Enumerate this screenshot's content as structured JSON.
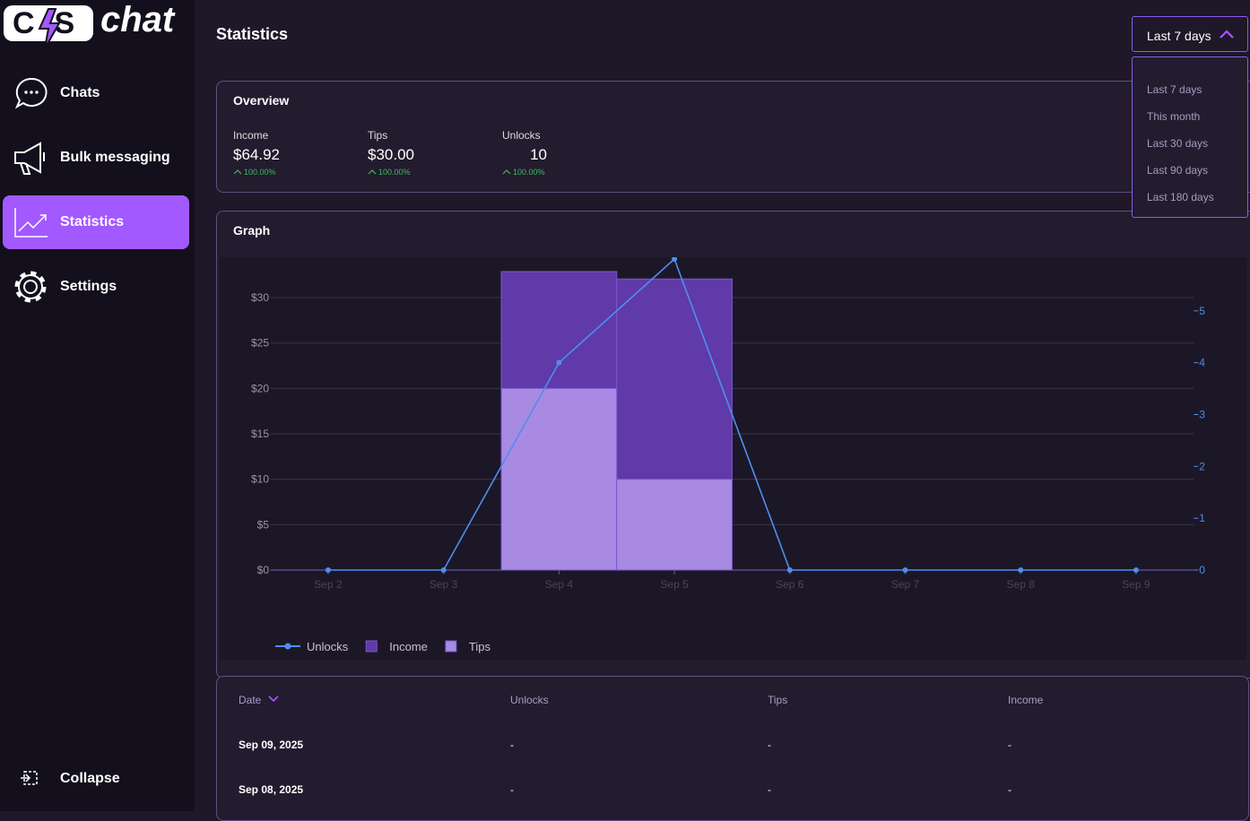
{
  "logo": {
    "mark": "CS",
    "name": "chat"
  },
  "nav": [
    "Chats",
    "Bulk messaging",
    "Statistics",
    "Settings"
  ],
  "collapse": "Collapse",
  "header": {
    "title": "Statistics",
    "range": "Last 7 days"
  },
  "dropdown": [
    "Last 7 days",
    "This month",
    "Last 30 days",
    "Last 90 days",
    "Last 180 days"
  ],
  "overview": {
    "title": "Overview",
    "items": [
      {
        "label": "Income",
        "value": "$64.92",
        "change": "100.00%"
      },
      {
        "label": "Tips",
        "value": "$30.00",
        "change": "100.00%"
      },
      {
        "label": "Unlocks",
        "value": "10",
        "change": "100.00%"
      }
    ]
  },
  "chart_data": {
    "type": "bar",
    "title": "Graph",
    "categories": [
      "Sep 2",
      "Sep 3",
      "Sep 4",
      "Sep 5",
      "Sep 6",
      "Sep 7",
      "Sep 8",
      "Sep 9"
    ],
    "series": [
      {
        "name": "Unlocks",
        "color": "#4f8ef0",
        "type": "line",
        "axis": "y2",
        "values": [
          0,
          0,
          4,
          6,
          0,
          0,
          0,
          0
        ]
      },
      {
        "name": "Income",
        "color": "#5f3aa8",
        "type": "bar",
        "values": [
          0,
          0,
          32.87,
          32.05,
          0,
          0,
          0,
          0
        ]
      },
      {
        "name": "Tips",
        "color": "#a98ae2",
        "type": "bar",
        "values": [
          0,
          0,
          20,
          10,
          0,
          0,
          0,
          0
        ]
      }
    ],
    "ylim": [
      0,
      34.25
    ],
    "yticks": [
      {
        "value": 0,
        "label": "$0"
      },
      {
        "value": 5,
        "label": "$5"
      },
      {
        "value": 10,
        "label": "$10"
      },
      {
        "value": 15,
        "label": "$15"
      },
      {
        "value": 20,
        "label": "$20"
      },
      {
        "value": 25,
        "label": "$25"
      },
      {
        "value": 30,
        "label": "$30"
      }
    ],
    "y2lim": [
      0,
      6
    ],
    "y2ticks": [
      0,
      1,
      2,
      3,
      4,
      5
    ],
    "grid": true,
    "legend": "bottom"
  },
  "table": {
    "headers": [
      "Date",
      "Unlocks",
      "Tips",
      "Income"
    ],
    "rows": [
      [
        "Sep 09, 2025",
        "-",
        "-",
        "-"
      ],
      [
        "Sep 08, 2025",
        "-",
        "-",
        "-"
      ]
    ]
  }
}
